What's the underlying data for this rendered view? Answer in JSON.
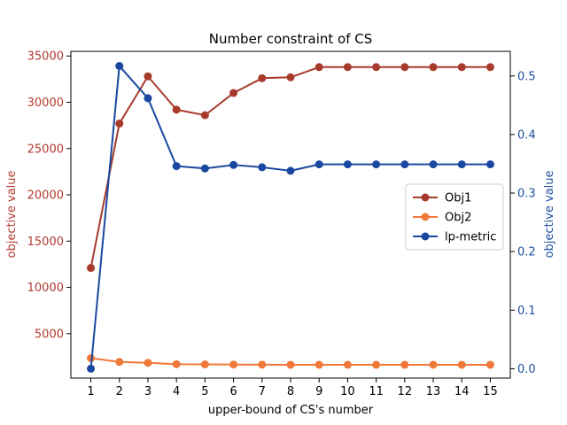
{
  "chart_data": {
    "type": "line",
    "title": "Number constraint of CS",
    "xlabel": "upper-bound of CS's number",
    "ylabel_left": "objective value",
    "ylabel_right": "objective value",
    "x": [
      1,
      2,
      3,
      4,
      5,
      6,
      7,
      8,
      9,
      10,
      11,
      12,
      13,
      14,
      15
    ],
    "xlim": [
      0.3,
      15.7
    ],
    "ylim_left": [
      200,
      35500
    ],
    "ylim_right": [
      -0.016,
      0.542
    ],
    "left_ticks": [
      5000,
      10000,
      15000,
      20000,
      25000,
      30000,
      35000
    ],
    "right_ticks": [
      0.0,
      0.1,
      0.2,
      0.3,
      0.4,
      0.5
    ],
    "left_axis_color": "#b23a2e",
    "right_axis_color": "#1f4fa0",
    "legend_position": "center-right",
    "series": [
      {
        "name": "Obj1",
        "axis": "left",
        "color": "#a83a2c",
        "values": [
          12100,
          27700,
          32800,
          29200,
          28600,
          31000,
          32600,
          32700,
          33800,
          33800,
          33800,
          33800,
          33800,
          33800,
          33800
        ]
      },
      {
        "name": "Obj2",
        "axis": "left",
        "color": "#f07838",
        "values": [
          2350,
          1950,
          1850,
          1700,
          1680,
          1660,
          1650,
          1640,
          1640,
          1640,
          1640,
          1640,
          1640,
          1640,
          1640
        ]
      },
      {
        "name": "lp-metric",
        "axis": "right",
        "color": "#1a48a0",
        "values": [
          0.0,
          0.517,
          0.462,
          0.346,
          0.342,
          0.348,
          0.344,
          0.338,
          0.349,
          0.349,
          0.349,
          0.349,
          0.349,
          0.349,
          0.349
        ]
      }
    ]
  }
}
